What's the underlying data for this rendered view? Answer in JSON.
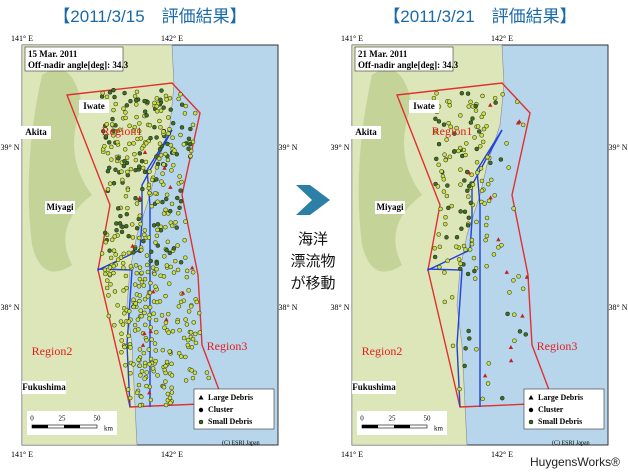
{
  "credit": "HuygensWorks®",
  "center_text": [
    "海洋",
    "漂流物",
    "が移動"
  ],
  "maps": [
    {
      "title": "【2011/3/15　評価結果】",
      "texts": {
        "date": "15 Mar. 2011",
        "angle": "Off-nadir angle[deg]: 34.3",
        "iwate": "Iwate",
        "akita": "Akita",
        "miyagi": "Miyagi",
        "fukushima": "Fukushima",
        "region1": "Region1",
        "region2": "Region2",
        "region3": "Region3",
        "lon141t": "141° E",
        "lon142t": "142° E",
        "lon141b": "141° E",
        "lon142b": "142° E",
        "lat39l": "39° N",
        "lat39r": "39° N",
        "lat38l": "38° N",
        "lat38r": "38° N",
        "large": "Large Debris",
        "cluster": "Cluster",
        "small": "Small Debris",
        "s0": "0",
        "s25": "25",
        "s50": "50",
        "km": "km",
        "esri": "(C) ESRI Japan"
      }
    },
    {
      "title": "【2011/3/21　評価結果】",
      "texts": {
        "date": "21 Mar. 2011",
        "angle": "Off-nadir angle[deg]: 34.3",
        "iwate": "Iwate",
        "akita": "Akita",
        "miyagi": "Miyagi",
        "fukushima": "Fukushima",
        "region1": "Region1",
        "region2": "Region2",
        "region3": "Region3",
        "lon141t": "141° E",
        "lon142t": "142° E",
        "lon141b": "141° E",
        "lon142b": "142° E",
        "lat39l": "39° N",
        "lat39r": "39° N",
        "lat38l": "38° N",
        "lat38r": "38° N",
        "large": "Large Debris",
        "cluster": "Cluster",
        "small": "Small Debris",
        "s0": "0",
        "s25": "25",
        "s50": "50",
        "km": "km",
        "esri": "(C) ESRI Japan"
      }
    }
  ]
}
